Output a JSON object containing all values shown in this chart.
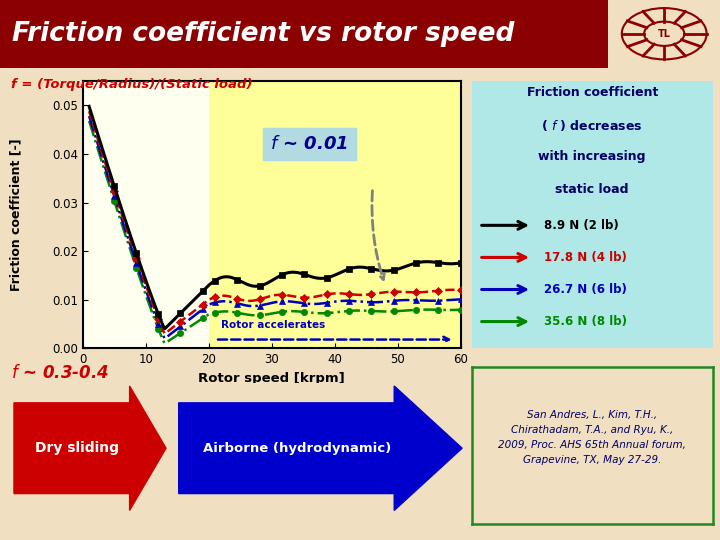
{
  "title": "Friction coefficient vs rotor speed",
  "title_bg": "#8B0000",
  "title_color": "#FFFFFF",
  "subtitle": "f = (Torque/Radius)/(Static load)",
  "subtitle_color": "#CC0000",
  "bg_color": "#F0DFC0",
  "plot_bg": "#FFFFF0",
  "yellow_bg": "#FFFF99",
  "cyan_box_bg": "#B0E8E8",
  "xlabel": "Rotor speed [krpm]",
  "ylabel": "Friction coefficient [-]",
  "xlim": [
    0,
    60
  ],
  "ylim": [
    0,
    0.055
  ],
  "yticks": [
    0,
    0.01,
    0.02,
    0.03,
    0.04,
    0.05
  ],
  "xticks": [
    0,
    10,
    20,
    30,
    40,
    50,
    60
  ],
  "legend_labels": [
    "8.9 N (2 lb)",
    "17.8 N (4 lb)",
    "26.7 N (6 lb)",
    "35.6 N (8 lb)"
  ],
  "legend_colors": [
    "#000000",
    "#CC0000",
    "#0000BB",
    "#008800"
  ],
  "ref_citation": "San Andres, L., Kim, T.H.,\nChirathadam, T.A., and Ryu, K.,\n2009, Proc. AHS 65th Annual forum,\nGrapevine, TX, May 27-29.",
  "f_approx_text": "f ~ 0.01",
  "f_bottom_text": "f ~ 0.3-0.4",
  "dry_sliding": "Dry sliding",
  "airborne": "Airborne (hydrodynamic)",
  "rotor_accelerates": "Rotor accelerates",
  "accel_boundary": 20,
  "right_info_text": "Friction coefficient\n( f ) decreases\nwith increasing\nstatic load"
}
